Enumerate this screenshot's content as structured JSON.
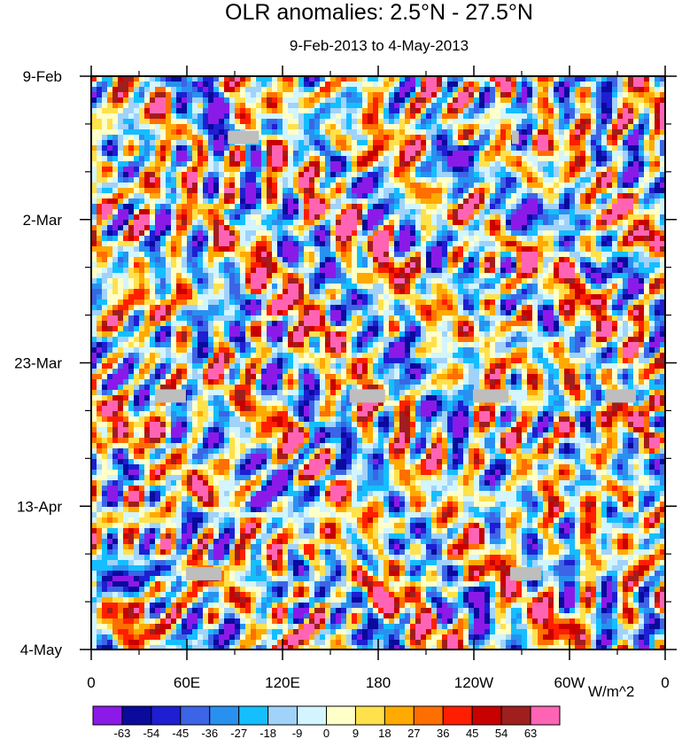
{
  "chart_data": {
    "type": "heatmap",
    "title": "OLR anomalies: 2.5°N - 27.5°N",
    "subtitle": "9-Feb-2013 to 4-May-2013",
    "x_tick_labels": [
      "0",
      "60E",
      "120E",
      "180",
      "120W",
      "60W",
      "0"
    ],
    "x_range_deg_east": [
      0,
      360
    ],
    "y_tick_labels": [
      "9-Feb",
      "2-Mar",
      "23-Mar",
      "13-Apr",
      "4-May"
    ],
    "y_range_days": [
      0,
      84
    ],
    "colorbar_levels": [
      -63,
      -54,
      -45,
      -36,
      -27,
      -18,
      -9,
      0,
      9,
      18,
      27,
      36,
      45,
      54,
      63
    ],
    "colorbar_colors": [
      "#8b1ae8",
      "#0a0a9c",
      "#1e1ed2",
      "#3c64e6",
      "#2891f0",
      "#14beff",
      "#a0d2fa",
      "#d2f5ff",
      "#ffffc8",
      "#ffe14b",
      "#ffaa00",
      "#ff6e00",
      "#ff1e00",
      "#c80000",
      "#a01e1e",
      "#ff64b4"
    ],
    "units": "W/m^2",
    "missing_color": "#bebebe",
    "grid": false
  }
}
